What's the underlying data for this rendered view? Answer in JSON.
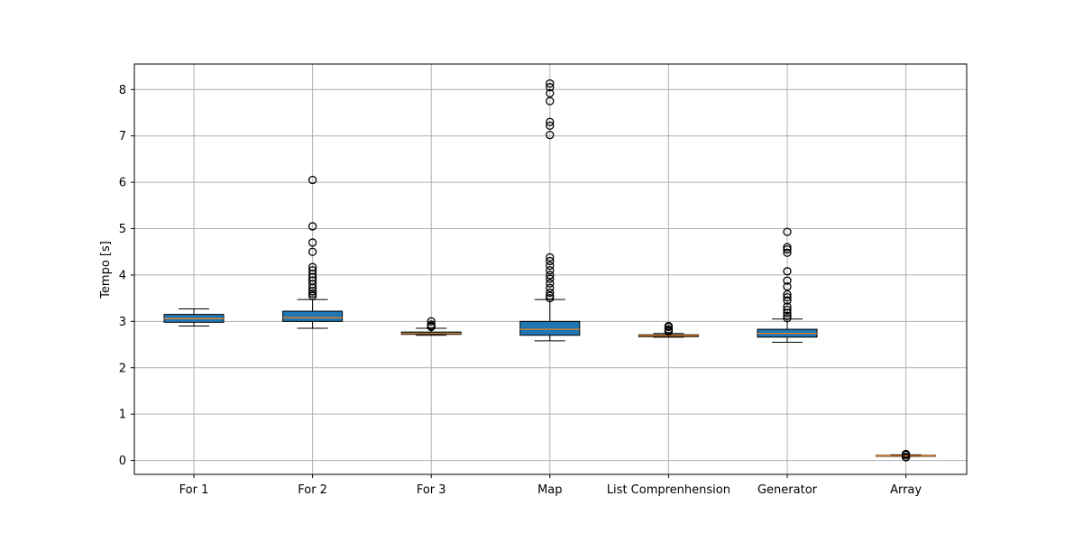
{
  "chart_data": {
    "type": "boxplot",
    "title": "",
    "xlabel": "",
    "ylabel": "Tempo [s]",
    "ylim": [
      -0.3,
      8.55
    ],
    "yticks": [
      0,
      1,
      2,
      3,
      4,
      5,
      6,
      7,
      8
    ],
    "ytick_labels": [
      "0",
      "1",
      "2",
      "3",
      "4",
      "5",
      "6",
      "7",
      "8"
    ],
    "grid": true,
    "categories": [
      "For 1",
      "For 2",
      "For 3",
      "Map",
      "List Comprenhension",
      "Generator",
      "Array"
    ],
    "series": [
      {
        "category": "For 1",
        "whisker_low": 2.9,
        "q1": 2.98,
        "median": 3.06,
        "q3": 3.15,
        "whisker_high": 3.27,
        "outliers": []
      },
      {
        "category": "For 2",
        "whisker_low": 2.85,
        "q1": 3.0,
        "median": 3.08,
        "q3": 3.22,
        "whisker_high": 3.47,
        "outliers": [
          3.55,
          3.6,
          3.65,
          3.72,
          3.8,
          3.88,
          3.95,
          4.02,
          4.1,
          4.17,
          4.5,
          4.7,
          5.05,
          6.05
        ]
      },
      {
        "category": "For 3",
        "whisker_low": 2.7,
        "q1": 2.72,
        "median": 2.74,
        "q3": 2.77,
        "whisker_high": 2.85,
        "outliers": [
          2.88,
          2.9,
          2.93,
          3.0
        ]
      },
      {
        "category": "Map",
        "whisker_low": 2.58,
        "q1": 2.7,
        "median": 2.83,
        "q3": 3.0,
        "whisker_high": 3.47,
        "outliers": [
          3.5,
          3.55,
          3.62,
          3.72,
          3.82,
          3.92,
          4.0,
          4.1,
          4.2,
          4.3,
          4.38,
          7.02,
          7.22,
          7.3,
          7.75,
          7.92,
          8.05,
          8.13
        ]
      },
      {
        "category": "List Comprenhension",
        "whisker_low": 2.66,
        "q1": 2.67,
        "median": 2.69,
        "q3": 2.71,
        "whisker_high": 2.74,
        "outliers": [
          2.78,
          2.8,
          2.83,
          2.88,
          2.9
        ]
      },
      {
        "category": "Generator",
        "whisker_low": 2.55,
        "q1": 2.66,
        "median": 2.74,
        "q3": 2.83,
        "whisker_high": 3.05,
        "outliers": [
          3.07,
          3.12,
          3.18,
          3.25,
          3.32,
          3.45,
          3.52,
          3.58,
          3.75,
          3.88,
          4.08,
          4.48,
          4.55,
          4.6,
          4.93
        ]
      },
      {
        "category": "Array",
        "whisker_low": 0.09,
        "q1": 0.1,
        "median": 0.1,
        "q3": 0.11,
        "whisker_high": 0.12,
        "outliers": [
          0.07,
          0.08,
          0.12,
          0.13,
          0.14
        ]
      }
    ],
    "colors": {
      "box_fill": "#1f77b4",
      "median": "#ff7f0e",
      "grid": "#b0b0b0",
      "outline": "#000000"
    }
  }
}
